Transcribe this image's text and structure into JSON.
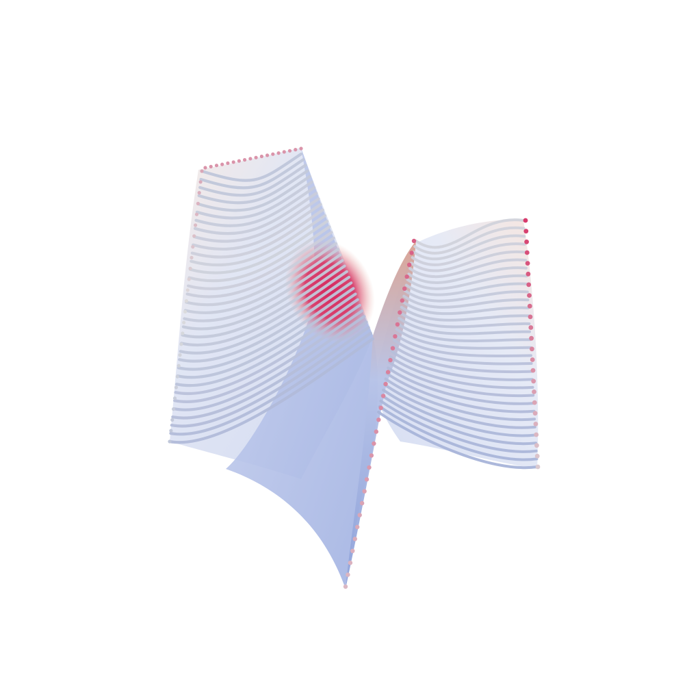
{
  "scene": {
    "subject": "3d-surface-render",
    "background_color": "#ffffff",
    "colormap": {
      "low": "#7f95d6",
      "mid": "#dcdcdc",
      "high": "#d6295f"
    }
  }
}
